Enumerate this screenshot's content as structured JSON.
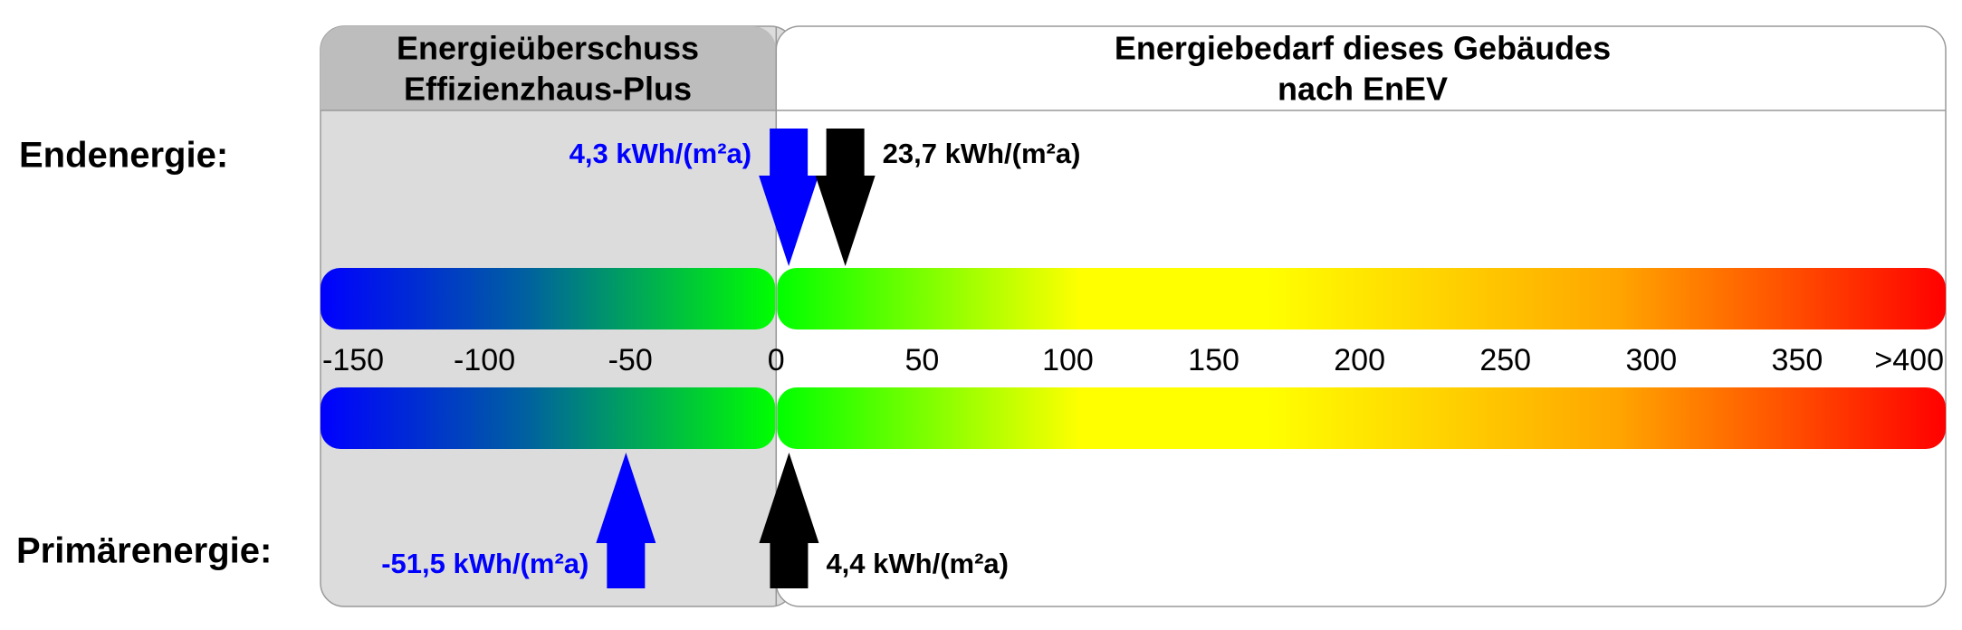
{
  "header": {
    "surplus_title": [
      "Energieüberschuss",
      "Effizienzhaus-Plus"
    ],
    "demand_title": [
      "Energiebedarf dieses Gebäudes",
      "nach EnEV"
    ]
  },
  "scale": {
    "xlim": [
      -150,
      400
    ],
    "ticks": [
      -150,
      -100,
      -50,
      0,
      50,
      100,
      150,
      200,
      250,
      300,
      350,
      {
        "value": 400,
        "label": ">400"
      }
    ]
  },
  "rows": [
    {
      "label": "Endenergie:",
      "markers": [
        {
          "value": 4.3,
          "value_label": "4,3 kWh/(m²a)",
          "color": "#0000ff"
        },
        {
          "value": 23.7,
          "value_label": "23,7 kWh/(m²a)",
          "color": "#000000"
        }
      ]
    },
    {
      "label": "Primärenergie:",
      "markers": [
        {
          "value": -51.5,
          "value_label": "-51,5 kWh/(m²a)",
          "color": "#0000ff"
        },
        {
          "value": 4.4,
          "value_label": "4,4 kWh/(m²a)",
          "color": "#000000"
        }
      ]
    }
  ]
}
